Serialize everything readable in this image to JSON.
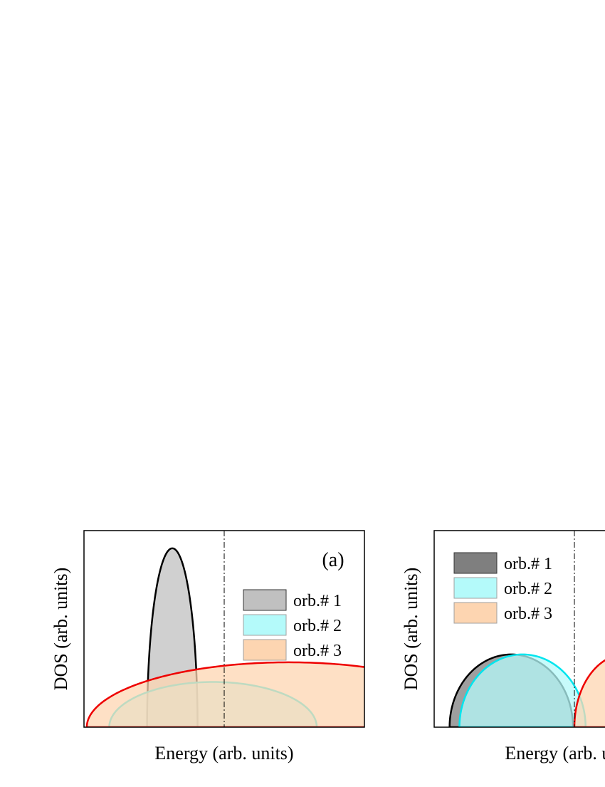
{
  "chart_data": [
    {
      "type": "area",
      "panel_label": "(a)",
      "xlabel": "Energy (arb. units)",
      "ylabel": "DOS (arb. units)",
      "xlim": [
        0,
        100
      ],
      "ylim": [
        0,
        100
      ],
      "fermi_level": 50,
      "legend_position": "right",
      "series": [
        {
          "name": "orb.# 1",
          "shape": "semi-ellipse",
          "center": 31.5,
          "half_width": 9,
          "peak": 91,
          "fill": "#c0c0c0",
          "stroke": "#000000"
        },
        {
          "name": "orb.# 2",
          "shape": "semi-ellipse",
          "center": 46,
          "half_width": 37,
          "peak": 23,
          "fill": "#b4fafa",
          "stroke": "#00e5ee"
        },
        {
          "name": "orb.# 3",
          "shape": "semi-ellipse",
          "center": 73,
          "half_width": 72,
          "peak": 33,
          "fill": "#fdd5b1",
          "stroke": "#ee0000"
        }
      ]
    },
    {
      "type": "area",
      "panel_label": "",
      "xlabel": "Energy (arb. units)",
      "ylabel": "DOS (arb. units)",
      "xlim": [
        0,
        100
      ],
      "ylim": [
        0,
        100
      ],
      "fermi_level": 50,
      "legend_position": "top-left",
      "series": [
        {
          "name": "orb.# 1",
          "shape": "semi-ellipse",
          "center": 27.5,
          "half_width": 22,
          "peak": 37,
          "fill": "#7f7f7f",
          "stroke": "#000000"
        },
        {
          "name": "orb.# 2",
          "shape": "semi-ellipse",
          "center": 31.5,
          "half_width": 22.5,
          "peak": 37,
          "fill": "#b4fafa",
          "stroke": "#00e5ee"
        },
        {
          "name": "orb.# 3",
          "shape": "semi-ellipse",
          "center": 68,
          "half_width": 18,
          "peak": 37,
          "fill": "#fdd5b1",
          "stroke": "#ee0000"
        }
      ]
    }
  ]
}
